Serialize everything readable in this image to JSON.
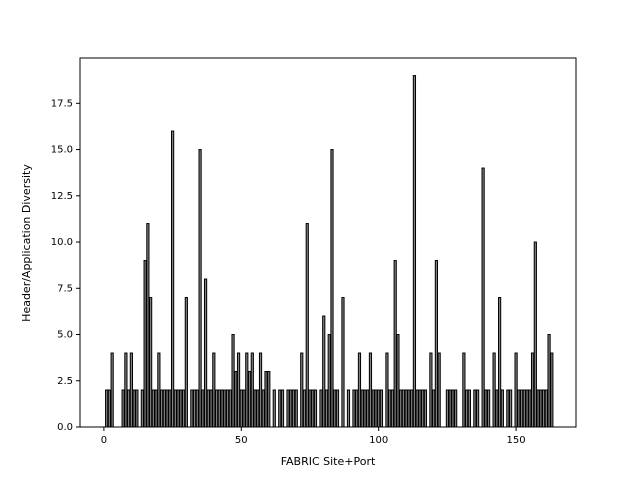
{
  "chart_data": {
    "type": "bar",
    "xlabel": "FABRIC Site+Port",
    "ylabel": "Header/Application Diversity",
    "color": "#808080",
    "edgecolor": "#000000",
    "x": [
      1,
      2,
      3,
      7,
      8,
      9,
      10,
      11,
      12,
      14,
      15,
      16,
      17,
      18,
      19,
      20,
      21,
      22,
      23,
      24,
      25,
      26,
      27,
      28,
      29,
      30,
      32,
      33,
      34,
      35,
      36,
      37,
      38,
      39,
      40,
      41,
      42,
      43,
      44,
      45,
      46,
      47,
      48,
      49,
      50,
      51,
      52,
      53,
      54,
      55,
      56,
      57,
      58,
      59,
      60,
      62,
      64,
      65,
      67,
      68,
      69,
      70,
      72,
      73,
      74,
      75,
      76,
      77,
      79,
      80,
      81,
      82,
      83,
      84,
      85,
      87,
      89,
      91,
      92,
      93,
      94,
      95,
      96,
      97,
      98,
      99,
      100,
      101,
      103,
      104,
      105,
      106,
      107,
      108,
      109,
      110,
      111,
      112,
      113,
      114,
      115,
      116,
      117,
      119,
      120,
      121,
      122,
      125,
      126,
      127,
      128,
      131,
      132,
      133,
      135,
      136,
      138,
      139,
      140,
      142,
      143,
      144,
      145,
      147,
      148,
      150,
      151,
      152,
      153,
      154,
      155,
      156,
      157,
      158,
      159,
      160,
      161,
      162,
      163
    ],
    "values": [
      2,
      2,
      4,
      2,
      4,
      2,
      4,
      2,
      2,
      2,
      9,
      11,
      7,
      2,
      2,
      4,
      2,
      2,
      2,
      2,
      16,
      2,
      2,
      2,
      2,
      7,
      2,
      2,
      2,
      15,
      2,
      8,
      2,
      2,
      4,
      2,
      2,
      2,
      2,
      2,
      2,
      5,
      3,
      4,
      2,
      2,
      4,
      3,
      4,
      2,
      2,
      4,
      2,
      3,
      3,
      2,
      2,
      2,
      2,
      2,
      2,
      2,
      4,
      2,
      11,
      2,
      2,
      2,
      2,
      6,
      2,
      5,
      15,
      2,
      2,
      7,
      2,
      2,
      2,
      4,
      2,
      2,
      2,
      4,
      2,
      2,
      2,
      2,
      4,
      2,
      2,
      9,
      5,
      2,
      2,
      2,
      2,
      2,
      19,
      2,
      2,
      2,
      2,
      4,
      2,
      9,
      4,
      2,
      2,
      2,
      2,
      4,
      2,
      2,
      2,
      2,
      14,
      2,
      2,
      4,
      2,
      7,
      2,
      2,
      2,
      4,
      2,
      2,
      2,
      2,
      2,
      4,
      10,
      2,
      2,
      2,
      2,
      5,
      4
    ],
    "xlim": [
      -8.7,
      171.8
    ],
    "ylim": [
      0,
      19.95
    ],
    "xticks": [
      0,
      50,
      100,
      150
    ],
    "yticks": [
      {
        "value": 0,
        "label": "0.0"
      },
      2.5,
      {
        "value": 5,
        "label": "5.0"
      },
      7.5,
      {
        "value": 10,
        "label": "10.0"
      },
      12.5,
      {
        "value": 15,
        "label": "15.0"
      },
      17.5
    ]
  }
}
